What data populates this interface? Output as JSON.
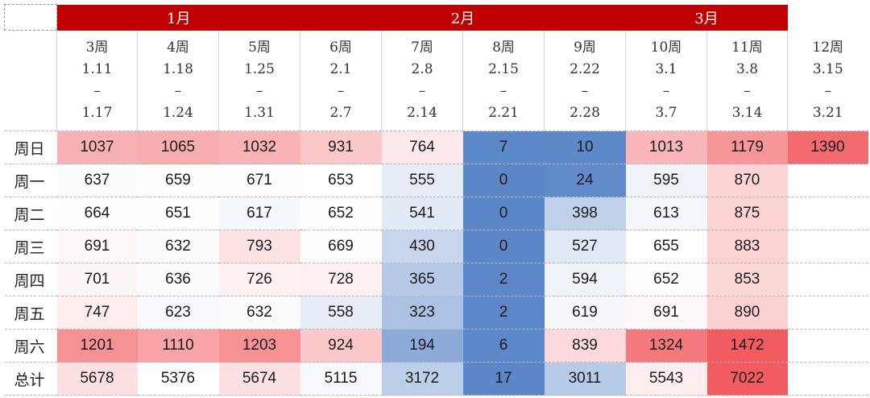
{
  "month_labels": [
    "1月",
    "2月",
    "3月"
  ],
  "weeks": [
    {
      "week": "3周",
      "start": "1.11",
      "dash": "–",
      "end": "1.17"
    },
    {
      "week": "4周",
      "start": "1.18",
      "dash": "–",
      "end": "1.24"
    },
    {
      "week": "5周",
      "start": "1.25",
      "dash": "–",
      "end": "1.31"
    },
    {
      "week": "6周",
      "start": "2.1",
      "dash": "–",
      "end": "2.7"
    },
    {
      "week": "7周",
      "start": "2.8",
      "dash": "–",
      "end": "2.14"
    },
    {
      "week": "8周",
      "start": "2.15",
      "dash": "–",
      "end": "2.21"
    },
    {
      "week": "9周",
      "start": "2.22",
      "dash": "–",
      "end": "2.28"
    },
    {
      "week": "10周",
      "start": "3.1",
      "dash": "–",
      "end": "3.7"
    },
    {
      "week": "11周",
      "start": "3.8",
      "dash": "–",
      "end": "3.14"
    },
    {
      "week": "12周",
      "start": "3.15",
      "dash": "–",
      "end": "3.21"
    }
  ],
  "chart_data": {
    "type": "heatmap",
    "color_scale": {
      "low": "#5b87c8",
      "mid": "#ffffff",
      "high": "#f25b5f"
    },
    "header_color": "#c00000",
    "rows": [
      {
        "label": "周日",
        "values": [
          1037,
          1065,
          1032,
          931,
          764,
          7,
          10,
          1013,
          1179,
          1390
        ]
      },
      {
        "label": "周一",
        "values": [
          637,
          659,
          671,
          653,
          555,
          0,
          24,
          595,
          870,
          null
        ]
      },
      {
        "label": "周二",
        "values": [
          664,
          651,
          617,
          652,
          541,
          0,
          398,
          613,
          875,
          null
        ]
      },
      {
        "label": "周三",
        "values": [
          691,
          632,
          793,
          669,
          430,
          0,
          527,
          655,
          883,
          null
        ]
      },
      {
        "label": "周四",
        "values": [
          701,
          636,
          726,
          728,
          365,
          2,
          594,
          652,
          853,
          null
        ]
      },
      {
        "label": "周五",
        "values": [
          747,
          623,
          632,
          558,
          323,
          2,
          619,
          691,
          890,
          null
        ]
      },
      {
        "label": "周六",
        "values": [
          1201,
          1110,
          1203,
          924,
          194,
          6,
          839,
          1324,
          1472,
          null
        ]
      },
      {
        "label": "总计",
        "values": [
          5678,
          5376,
          5674,
          5115,
          3172,
          17,
          3011,
          5543,
          7022,
          null
        ]
      }
    ]
  }
}
